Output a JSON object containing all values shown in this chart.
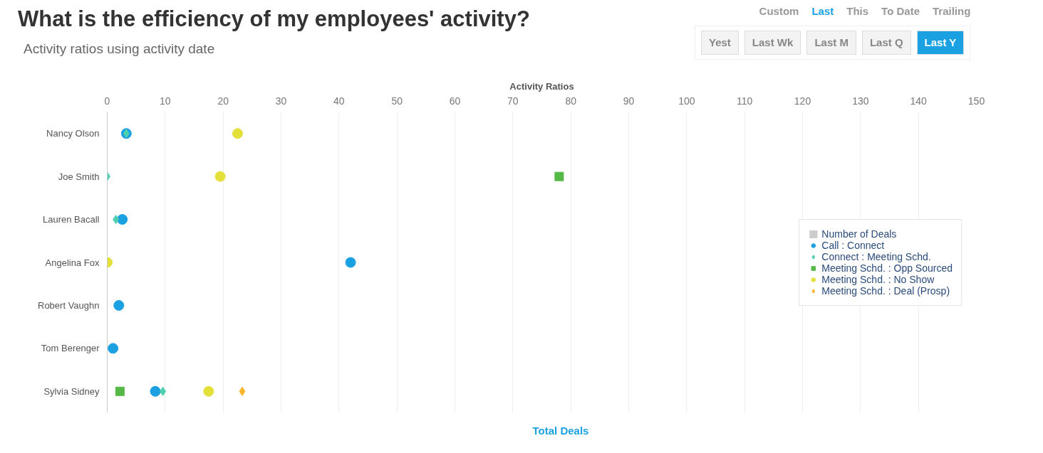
{
  "chart_data": {
    "type": "scatter",
    "orientation": "horizontal",
    "title": "What is the efficiency of my employees' activity?",
    "subtitle": "Activity ratios using activity date",
    "xlabel": "Activity Ratios",
    "categories": [
      "Nancy Olson",
      "Joe Smith",
      "Lauren Bacall",
      "Angelina Fox",
      "Robert Vaughn",
      "Tom Berenger",
      "Sylvia Sidney"
    ],
    "series": [
      {
        "name": "Number of Deals",
        "type": "bar",
        "color": "#cccccc",
        "values": [
          null,
          null,
          null,
          null,
          null,
          null,
          null
        ]
      },
      {
        "name": "Call : Connect",
        "color": "#1ba1e2",
        "marker": "circle",
        "values": [
          3.3,
          null,
          2.6,
          42,
          2,
          1,
          8.3
        ]
      },
      {
        "name": "Connect : Meeting Schd.",
        "color": "#4dd0b0",
        "marker": "diamond",
        "values": [
          3.3,
          0,
          1.5,
          null,
          null,
          null,
          9.6
        ]
      },
      {
        "name": "Meeting Schd. : Opp Sourced",
        "color": "#56b947",
        "marker": "square",
        "values": [
          null,
          78,
          null,
          null,
          null,
          null,
          2.2
        ]
      },
      {
        "name": "Meeting Schd. : No Show",
        "color": "#e3e03a",
        "marker": "circle",
        "values": [
          22.5,
          19.5,
          null,
          0,
          null,
          null,
          17.5
        ]
      },
      {
        "name": "Meeting Schd. : Deal (Prosp)",
        "color": "#fbb52c",
        "marker": "diamond",
        "values": [
          null,
          null,
          null,
          null,
          null,
          null,
          23.3
        ]
      }
    ],
    "xlim": [
      0,
      150
    ],
    "xticks": [
      0,
      10,
      20,
      30,
      40,
      50,
      60,
      70,
      80,
      90,
      100,
      110,
      120,
      130,
      140,
      150
    ],
    "grid": "x",
    "legend": "right",
    "annotations": [
      "Custom",
      "Last",
      "This",
      "To Date",
      "Trailing",
      "Yest",
      "Last Wk",
      "Last M",
      "Last Q",
      "Last Y",
      "Total Deals"
    ]
  }
}
